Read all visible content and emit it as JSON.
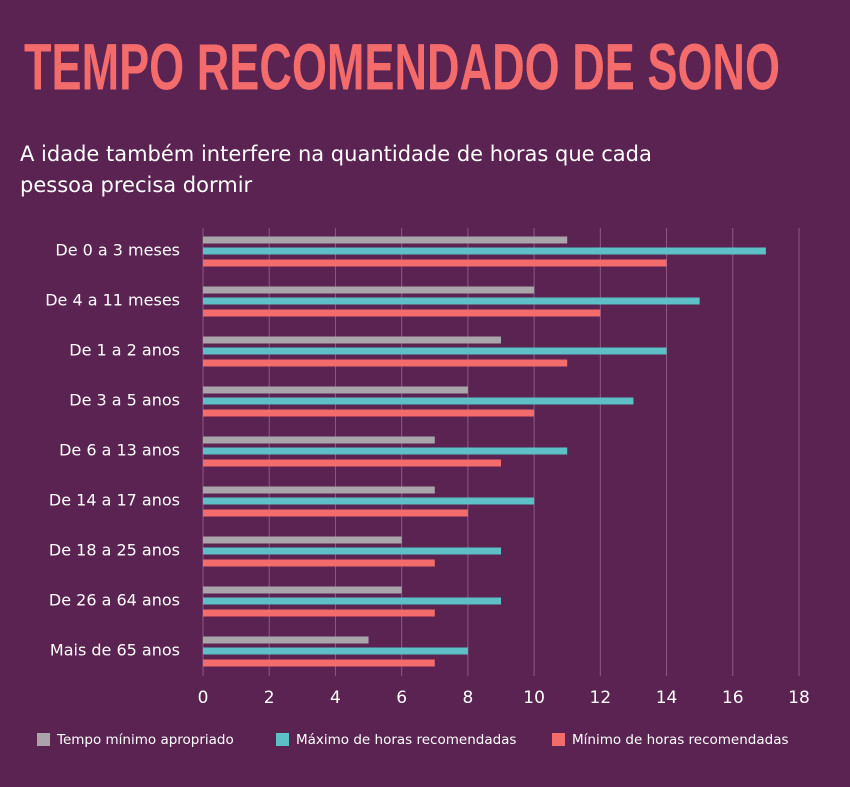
{
  "chart_data": {
    "type": "bar",
    "orientation": "horizontal",
    "title": "TEMPO RECOMENDADO DE SONO",
    "subtitle": [
      "A idade também interfere na quantidade de horas que cada",
      "pessoa precisa dormir"
    ],
    "categories": [
      "De 0 a 3 meses",
      "De 4 a 11 meses",
      "De 1 a 2 anos",
      "De 3 a 5 anos",
      "De 6 a 13 anos",
      "De 14 a 17 anos",
      "De 18 a 25 anos",
      "De 26 a 64 anos",
      "Mais de 65 anos"
    ],
    "series": [
      {
        "name": "Tempo mínimo apropriado",
        "color": "#aaa5ab",
        "values": [
          11,
          10,
          9,
          8,
          7,
          7,
          6,
          6,
          5
        ]
      },
      {
        "name": "Máximo de horas recomendadas",
        "color": "#5cc0c6",
        "values": [
          17,
          15,
          14,
          13,
          11,
          10,
          9,
          9,
          8
        ]
      },
      {
        "name": "Mínimo de horas recomendadas",
        "color": "#f46b6c",
        "values": [
          14,
          12,
          11,
          10,
          9,
          8,
          7,
          7,
          7
        ]
      }
    ],
    "xlim": [
      0,
      18
    ],
    "xticks": [
      0,
      2,
      4,
      6,
      8,
      10,
      12,
      14,
      16,
      18
    ],
    "grid": true,
    "legend": "bottom"
  }
}
